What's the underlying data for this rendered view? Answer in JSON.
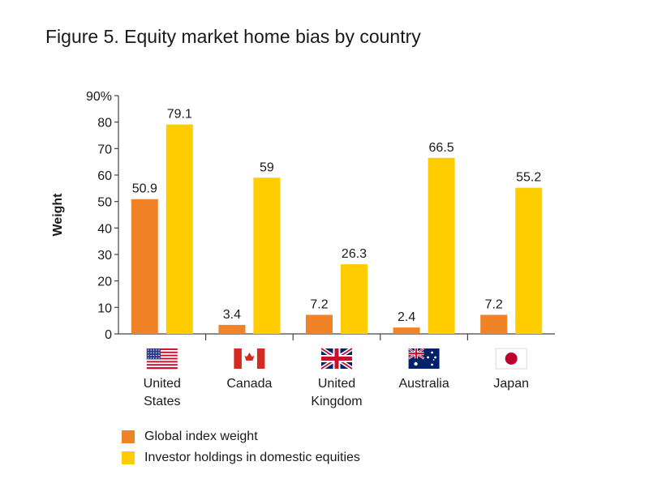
{
  "figure_title": "Figure 5. Equity market home bias by country",
  "colors": {
    "global": "#F08228",
    "domestic": "#FFCC00",
    "axis": "#444444"
  },
  "chart_data": {
    "type": "bar",
    "title": "Figure 5. Equity market home bias by country",
    "ylabel": "Weight",
    "xlabel": "",
    "ylim": [
      0,
      90
    ],
    "yticks": [
      "0",
      "10",
      "20",
      "30",
      "40",
      "50",
      "60",
      "70",
      "80",
      "90%"
    ],
    "categories": [
      {
        "lines": [
          "United",
          "States"
        ],
        "flag": "flag-us-icon"
      },
      {
        "lines": [
          "Canada"
        ],
        "flag": "flag-canada-icon"
      },
      {
        "lines": [
          "United",
          "Kingdom"
        ],
        "flag": "flag-uk-icon"
      },
      {
        "lines": [
          "Australia"
        ],
        "flag": "flag-australia-icon"
      },
      {
        "lines": [
          "Japan"
        ],
        "flag": "flag-japan-icon"
      }
    ],
    "series": [
      {
        "name": "Global index weight",
        "color": "#F08228",
        "values": [
          50.9,
          3.4,
          7.2,
          2.4,
          7.2
        ],
        "labels": [
          "50.9",
          "3.4",
          "7.2",
          "2.4",
          "7.2"
        ]
      },
      {
        "name": "Investor holdings in domestic equities",
        "color": "#FFCC00",
        "values": [
          79.1,
          59,
          26.3,
          66.5,
          55.2
        ],
        "labels": [
          "79.1",
          "59",
          "26.3",
          "66.5",
          "55.2"
        ]
      }
    ],
    "legend_position": "bottom-left",
    "grid": false
  }
}
